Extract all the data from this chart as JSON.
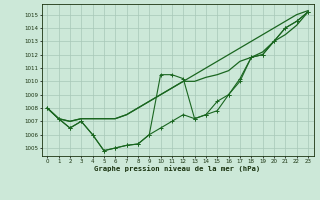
{
  "bg_color": "#cce8d8",
  "grid_color": "#a8c8b8",
  "line_color": "#1a6620",
  "title": "Graphe pression niveau de la mer (hPa)",
  "ylim": [
    1004.4,
    1015.8
  ],
  "xlim": [
    -0.5,
    23.5
  ],
  "yticks": [
    1005,
    1006,
    1007,
    1008,
    1009,
    1010,
    1011,
    1012,
    1013,
    1014,
    1015
  ],
  "xticks": [
    0,
    1,
    2,
    3,
    4,
    5,
    6,
    7,
    8,
    9,
    10,
    11,
    12,
    13,
    14,
    15,
    16,
    17,
    18,
    19,
    20,
    21,
    22,
    23
  ],
  "line_main": [
    1008.0,
    1007.2,
    1006.5,
    1007.0,
    1006.0,
    1004.8,
    1005.0,
    1005.2,
    1005.3,
    1006.0,
    1006.5,
    1007.0,
    1007.5,
    1007.2,
    1007.5,
    1008.5,
    1009.0,
    1010.0,
    1011.8,
    1012.0,
    1013.0,
    1014.0,
    1014.5,
    1015.2
  ],
  "line_mid1": [
    1008.0,
    1007.2,
    1006.5,
    1007.0,
    1006.0,
    1004.8,
    1005.0,
    1005.2,
    1005.3,
    1006.0,
    1010.5,
    1010.5,
    1010.2,
    1007.2,
    1007.5,
    1007.8,
    1009.0,
    1010.2,
    1011.8,
    1012.0,
    1013.0,
    1014.0,
    1014.5,
    1015.2
  ],
  "line_smooth1": [
    1008.0,
    1007.2,
    1007.0,
    1007.2,
    1007.2,
    1007.2,
    1007.2,
    1007.5,
    1008.0,
    1008.5,
    1009.0,
    1009.5,
    1010.0,
    1010.5,
    1011.0,
    1011.5,
    1012.0,
    1012.5,
    1013.0,
    1013.5,
    1014.0,
    1014.5,
    1015.0,
    1015.3
  ],
  "line_smooth2": [
    1008.0,
    1007.2,
    1007.0,
    1007.2,
    1007.2,
    1007.2,
    1007.2,
    1007.5,
    1008.0,
    1008.5,
    1009.0,
    1009.5,
    1010.0,
    1010.0,
    1010.3,
    1010.5,
    1010.8,
    1011.5,
    1011.8,
    1012.2,
    1013.0,
    1013.5,
    1014.2,
    1015.2
  ]
}
